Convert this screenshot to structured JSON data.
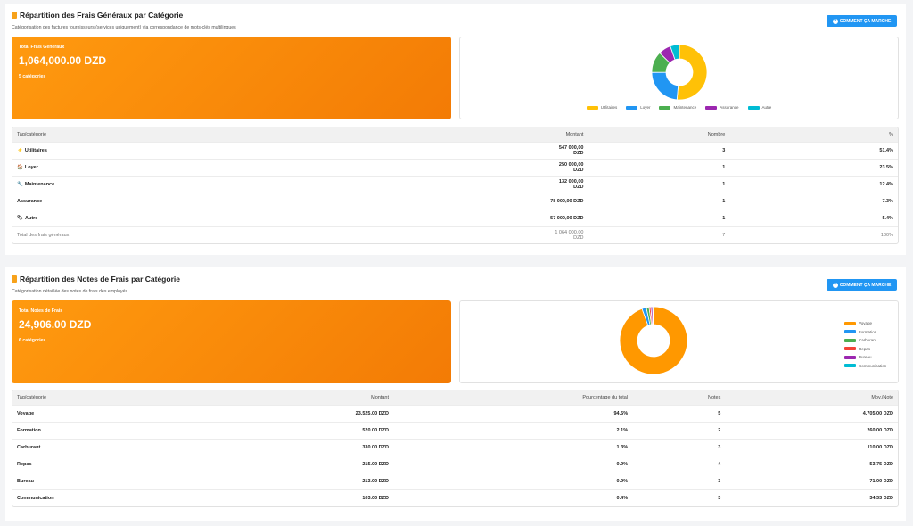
{
  "section1": {
    "title": "Répartition des Frais Généraux par Catégorie",
    "subtitle": "Catégorisation des factures fournisseurs (services uniquement) via correspondance de mots-clés multilingues",
    "help_button": "COMMENT ÇA MARCHE",
    "card": {
      "label": "Total Frais Généraux",
      "value": "1,064,000.00 DZD",
      "count": "5 catégories"
    },
    "table": {
      "headers": [
        "Tag/catégorie",
        "Montant",
        "Nombre",
        "%"
      ],
      "rows": [
        {
          "icon": "lightning-icon",
          "glyph": "⚡",
          "tag": "Utilitaires",
          "amount": "547 000,00 DZD",
          "count": "3",
          "pct": "51.4%"
        },
        {
          "icon": "house-icon",
          "glyph": "🏠",
          "tag": "Loyer",
          "amount": "250 000,00 DZD",
          "count": "1",
          "pct": "23.5%"
        },
        {
          "icon": "wrench-icon",
          "glyph": "🔧",
          "tag": "Maintenance",
          "amount": "132 000,00 DZD",
          "count": "1",
          "pct": "12.4%"
        },
        {
          "icon": "",
          "glyph": "",
          "tag": "Assurance",
          "amount": "78 000,00 DZD",
          "count": "1",
          "pct": "7.3%"
        },
        {
          "icon": "tag-icon",
          "glyph": "🏷",
          "tag": "Autre",
          "amount": "57 000,00 DZD",
          "count": "1",
          "pct": "5.4%"
        }
      ],
      "total": {
        "label": "Total des frais généraux",
        "amount": "1 064 000,00 DZD",
        "count": "7",
        "pct": "100%"
      }
    }
  },
  "section2": {
    "title": "Répartition des Notes de Frais par Catégorie",
    "subtitle": "Catégorisation détaillée des notes de frais des employés",
    "help_button": "COMMENT ÇA MARCHE",
    "card": {
      "label": "Total Notes de Frais",
      "value": "24,906.00 DZD",
      "count": "6 catégories"
    },
    "table": {
      "headers": [
        "Tag/catégorie",
        "Montant",
        "Pourcentage du total",
        "Notes",
        "Moy./Note"
      ],
      "rows": [
        {
          "tag": "Voyage",
          "amount": "23,525.00 DZD",
          "pct": "94.5%",
          "notes": "5",
          "avg": "4,705.00 DZD"
        },
        {
          "tag": "Formation",
          "amount": "520.00 DZD",
          "pct": "2.1%",
          "notes": "2",
          "avg": "260.00 DZD"
        },
        {
          "tag": "Carburant",
          "amount": "330.00 DZD",
          "pct": "1.3%",
          "notes": "3",
          "avg": "110.00 DZD"
        },
        {
          "tag": "Repas",
          "amount": "215.00 DZD",
          "pct": "0.9%",
          "notes": "4",
          "avg": "53.75 DZD"
        },
        {
          "tag": "Bureau",
          "amount": "213.00 DZD",
          "pct": "0.9%",
          "notes": "3",
          "avg": "71.00 DZD"
        },
        {
          "tag": "Communication",
          "amount": "103.00 DZD",
          "pct": "0.4%",
          "notes": "3",
          "avg": "34.33 DZD"
        }
      ]
    }
  },
  "chart_data": [
    {
      "type": "pie",
      "categories": [
        "Utilitaires",
        "Loyer",
        "Maintenance",
        "Assurance",
        "Autre"
      ],
      "values": [
        547000,
        250000,
        132000,
        78000,
        57000
      ],
      "colors": [
        "#ffc107",
        "#2196f3",
        "#4caf50",
        "#9c27b0",
        "#00bcd4"
      ],
      "legend": "bottom"
    },
    {
      "type": "pie",
      "categories": [
        "Voyage",
        "Formation",
        "Carburant",
        "Repas",
        "Bureau",
        "Communication"
      ],
      "values": [
        23525,
        520,
        330,
        215,
        213,
        103
      ],
      "colors": [
        "#ff9800",
        "#2196f3",
        "#4caf50",
        "#f44336",
        "#9c27b0",
        "#00bcd4"
      ],
      "legend": "right"
    }
  ]
}
